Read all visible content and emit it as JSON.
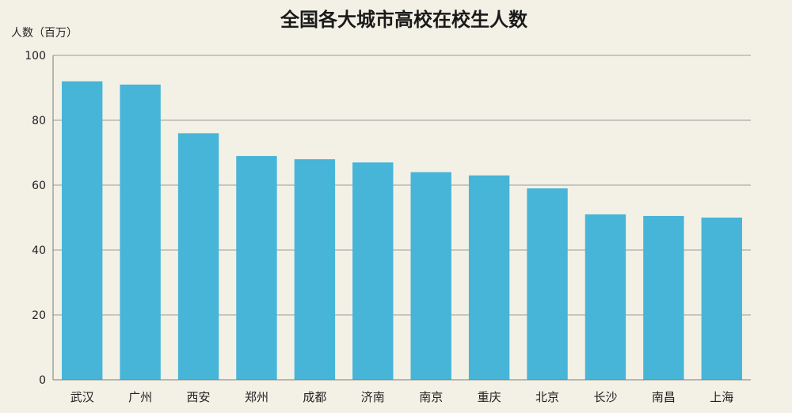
{
  "chart_data": {
    "type": "bar",
    "title": "全国各大城市高校在校生人数",
    "xlabel": "",
    "ylabel": "人数（百万）",
    "categories": [
      "武汉",
      "广州",
      "西安",
      "郑州",
      "成都",
      "济南",
      "南京",
      "重庆",
      "北京",
      "长沙",
      "南昌",
      "上海"
    ],
    "values": [
      92,
      91,
      76,
      69,
      68,
      67,
      64,
      63,
      59,
      51,
      50.5,
      50
    ],
    "ylim": [
      0,
      100
    ],
    "yticks": [
      0,
      20,
      40,
      60,
      80,
      100
    ],
    "grid": true,
    "bar_color": "#46b5d8",
    "background_color": "#f3f1e6"
  }
}
